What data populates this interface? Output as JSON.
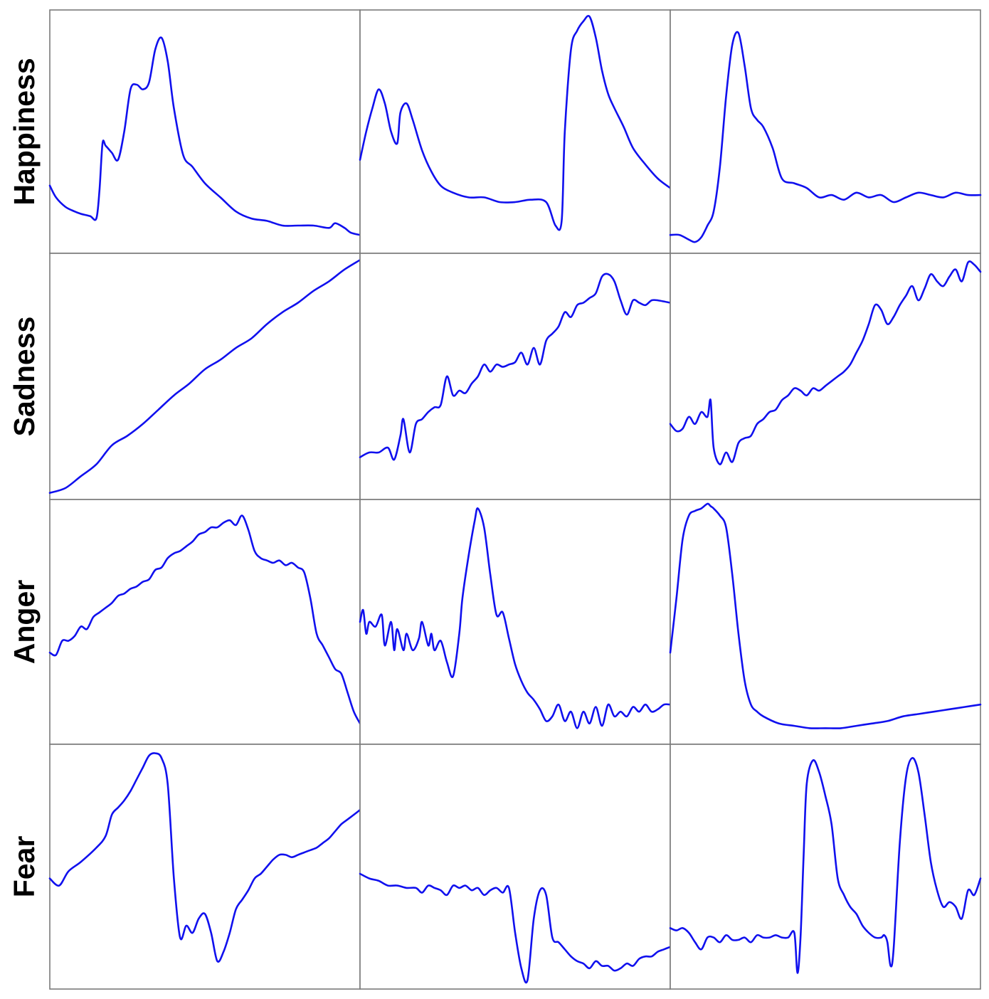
{
  "colors": {
    "line": "#1010ee",
    "frame": "#7a7a7a",
    "background": "#ffffff"
  },
  "rows": [
    {
      "label": "Happiness"
    },
    {
      "label": "Sadness"
    },
    {
      "label": "Anger"
    },
    {
      "label": "Fear"
    }
  ],
  "chart_data": {
    "type": "line",
    "layout": "grid",
    "grid": false,
    "axes_visible": false,
    "ylim": [
      0,
      1
    ],
    "panels": [
      [
        {
          "x": [
            0,
            0.02,
            0.05,
            0.08,
            0.1,
            0.13,
            0.15,
            0.16,
            0.17,
            0.18,
            0.2,
            0.22,
            0.24,
            0.26,
            0.28,
            0.3,
            0.32,
            0.34,
            0.36,
            0.38,
            0.4,
            0.43,
            0.46,
            0.5,
            0.55,
            0.6,
            0.65,
            0.7,
            0.75,
            0.8,
            0.85,
            0.9,
            0.92,
            0.95,
            0.97,
            1.0
          ],
          "y": [
            0.27,
            0.22,
            0.18,
            0.16,
            0.15,
            0.14,
            0.13,
            0.25,
            0.45,
            0.44,
            0.41,
            0.38,
            0.5,
            0.68,
            0.7,
            0.68,
            0.71,
            0.85,
            0.9,
            0.8,
            0.6,
            0.4,
            0.35,
            0.28,
            0.22,
            0.16,
            0.13,
            0.12,
            0.1,
            0.1,
            0.1,
            0.09,
            0.11,
            0.09,
            0.07,
            0.06
          ]
        },
        {
          "x": [
            0,
            0.02,
            0.04,
            0.06,
            0.08,
            0.1,
            0.12,
            0.13,
            0.15,
            0.17,
            0.2,
            0.23,
            0.26,
            0.3,
            0.35,
            0.4,
            0.45,
            0.5,
            0.55,
            0.6,
            0.63,
            0.65,
            0.66,
            0.68,
            0.7,
            0.72,
            0.74,
            0.76,
            0.78,
            0.8,
            0.82,
            0.85,
            0.88,
            0.92,
            0.96,
            1.0
          ],
          "y": [
            0.38,
            0.5,
            0.6,
            0.68,
            0.62,
            0.5,
            0.45,
            0.58,
            0.62,
            0.55,
            0.42,
            0.33,
            0.27,
            0.24,
            0.22,
            0.22,
            0.2,
            0.2,
            0.21,
            0.2,
            0.1,
            0.12,
            0.5,
            0.85,
            0.93,
            0.97,
            0.99,
            0.9,
            0.76,
            0.66,
            0.6,
            0.52,
            0.43,
            0.36,
            0.3,
            0.26
          ]
        },
        {
          "x": [
            0,
            0.03,
            0.06,
            0.08,
            0.1,
            0.12,
            0.14,
            0.16,
            0.18,
            0.2,
            0.22,
            0.24,
            0.26,
            0.28,
            0.3,
            0.33,
            0.36,
            0.4,
            0.44,
            0.48,
            0.52,
            0.56,
            0.6,
            0.64,
            0.68,
            0.72,
            0.76,
            0.8,
            0.84,
            0.88,
            0.92,
            0.96,
            1.0
          ],
          "y": [
            0.06,
            0.06,
            0.04,
            0.03,
            0.05,
            0.1,
            0.16,
            0.35,
            0.65,
            0.87,
            0.92,
            0.78,
            0.6,
            0.55,
            0.52,
            0.43,
            0.3,
            0.28,
            0.26,
            0.22,
            0.23,
            0.21,
            0.24,
            0.22,
            0.23,
            0.2,
            0.22,
            0.24,
            0.23,
            0.22,
            0.24,
            0.23,
            0.23
          ]
        }
      ],
      [
        {
          "x": [
            0,
            0.05,
            0.1,
            0.15,
            0.2,
            0.25,
            0.3,
            0.35,
            0.4,
            0.45,
            0.5,
            0.55,
            0.6,
            0.65,
            0.7,
            0.75,
            0.8,
            0.85,
            0.9,
            0.95,
            1.0
          ],
          "y": [
            0.01,
            0.03,
            0.08,
            0.13,
            0.21,
            0.25,
            0.3,
            0.36,
            0.42,
            0.47,
            0.53,
            0.57,
            0.62,
            0.66,
            0.72,
            0.77,
            0.81,
            0.86,
            0.9,
            0.95,
            0.99
          ]
        },
        {
          "x": [
            0,
            0.03,
            0.06,
            0.09,
            0.11,
            0.13,
            0.14,
            0.16,
            0.18,
            0.2,
            0.22,
            0.24,
            0.26,
            0.28,
            0.3,
            0.32,
            0.34,
            0.36,
            0.38,
            0.4,
            0.42,
            0.44,
            0.46,
            0.48,
            0.5,
            0.52,
            0.54,
            0.56,
            0.58,
            0.6,
            0.62,
            0.64,
            0.66,
            0.68,
            0.7,
            0.72,
            0.74,
            0.76,
            0.78,
            0.8,
            0.82,
            0.84,
            0.86,
            0.88,
            0.9,
            0.92,
            0.94,
            0.96,
            1.0
          ],
          "y": [
            0.16,
            0.18,
            0.18,
            0.2,
            0.15,
            0.25,
            0.32,
            0.18,
            0.3,
            0.32,
            0.35,
            0.37,
            0.38,
            0.5,
            0.42,
            0.44,
            0.43,
            0.47,
            0.5,
            0.55,
            0.52,
            0.55,
            0.54,
            0.55,
            0.56,
            0.6,
            0.55,
            0.62,
            0.55,
            0.65,
            0.68,
            0.71,
            0.77,
            0.75,
            0.8,
            0.81,
            0.83,
            0.85,
            0.92,
            0.93,
            0.9,
            0.82,
            0.76,
            0.82,
            0.81,
            0.8,
            0.82,
            0.82,
            0.81
          ]
        },
        {
          "x": [
            0,
            0.02,
            0.04,
            0.06,
            0.08,
            0.1,
            0.12,
            0.13,
            0.14,
            0.16,
            0.18,
            0.2,
            0.22,
            0.24,
            0.26,
            0.28,
            0.3,
            0.32,
            0.34,
            0.36,
            0.38,
            0.4,
            0.42,
            0.44,
            0.46,
            0.48,
            0.5,
            0.52,
            0.54,
            0.56,
            0.58,
            0.6,
            0.62,
            0.64,
            0.66,
            0.68,
            0.7,
            0.72,
            0.74,
            0.76,
            0.78,
            0.8,
            0.82,
            0.84,
            0.86,
            0.88,
            0.9,
            0.92,
            0.94,
            0.96,
            0.98,
            1.0
          ],
          "y": [
            0.3,
            0.27,
            0.28,
            0.33,
            0.3,
            0.35,
            0.33,
            0.4,
            0.2,
            0.13,
            0.18,
            0.14,
            0.22,
            0.24,
            0.25,
            0.3,
            0.32,
            0.35,
            0.36,
            0.4,
            0.42,
            0.45,
            0.44,
            0.42,
            0.45,
            0.44,
            0.46,
            0.48,
            0.5,
            0.52,
            0.55,
            0.6,
            0.65,
            0.72,
            0.8,
            0.78,
            0.72,
            0.75,
            0.8,
            0.84,
            0.88,
            0.82,
            0.87,
            0.93,
            0.9,
            0.88,
            0.92,
            0.95,
            0.9,
            0.98,
            0.97,
            0.94
          ]
        }
      ],
      [
        {
          "x": [
            0,
            0.02,
            0.04,
            0.06,
            0.08,
            0.1,
            0.12,
            0.14,
            0.16,
            0.18,
            0.2,
            0.22,
            0.24,
            0.26,
            0.28,
            0.3,
            0.32,
            0.34,
            0.36,
            0.38,
            0.4,
            0.42,
            0.44,
            0.46,
            0.48,
            0.5,
            0.52,
            0.54,
            0.56,
            0.58,
            0.6,
            0.62,
            0.64,
            0.66,
            0.68,
            0.7,
            0.72,
            0.74,
            0.76,
            0.78,
            0.8,
            0.82,
            0.84,
            0.86,
            0.88,
            0.9,
            0.92,
            0.94,
            0.96,
            0.98,
            1.0
          ],
          "y": [
            0.37,
            0.36,
            0.42,
            0.42,
            0.44,
            0.48,
            0.47,
            0.52,
            0.54,
            0.56,
            0.58,
            0.61,
            0.62,
            0.64,
            0.65,
            0.67,
            0.68,
            0.72,
            0.73,
            0.77,
            0.79,
            0.8,
            0.82,
            0.84,
            0.87,
            0.88,
            0.9,
            0.9,
            0.92,
            0.93,
            0.91,
            0.95,
            0.89,
            0.8,
            0.77,
            0.76,
            0.75,
            0.76,
            0.74,
            0.75,
            0.73,
            0.71,
            0.6,
            0.45,
            0.4,
            0.35,
            0.3,
            0.28,
            0.2,
            0.12,
            0.07
          ]
        },
        {
          "x": [
            0,
            0.01,
            0.02,
            0.03,
            0.05,
            0.07,
            0.08,
            0.1,
            0.11,
            0.12,
            0.14,
            0.15,
            0.17,
            0.19,
            0.2,
            0.22,
            0.23,
            0.24,
            0.26,
            0.28,
            0.3,
            0.32,
            0.33,
            0.35,
            0.37,
            0.38,
            0.4,
            0.42,
            0.44,
            0.46,
            0.48,
            0.5,
            0.52,
            0.54,
            0.56,
            0.58,
            0.6,
            0.62,
            0.64,
            0.66,
            0.68,
            0.7,
            0.72,
            0.74,
            0.76,
            0.78,
            0.8,
            0.82,
            0.84,
            0.86,
            0.88,
            0.9,
            0.92,
            0.94,
            0.96,
            0.98,
            1.0
          ],
          "y": [
            0.5,
            0.55,
            0.45,
            0.5,
            0.48,
            0.53,
            0.4,
            0.5,
            0.38,
            0.47,
            0.38,
            0.45,
            0.38,
            0.43,
            0.5,
            0.4,
            0.45,
            0.38,
            0.42,
            0.33,
            0.27,
            0.45,
            0.6,
            0.78,
            0.93,
            0.98,
            0.9,
            0.7,
            0.53,
            0.54,
            0.43,
            0.32,
            0.25,
            0.2,
            0.17,
            0.13,
            0.08,
            0.1,
            0.15,
            0.08,
            0.12,
            0.05,
            0.12,
            0.07,
            0.14,
            0.06,
            0.15,
            0.1,
            0.12,
            0.1,
            0.14,
            0.12,
            0.15,
            0.12,
            0.13,
            0.15,
            0.15
          ]
        },
        {
          "x": [
            0,
            0.02,
            0.04,
            0.06,
            0.08,
            0.1,
            0.12,
            0.13,
            0.14,
            0.16,
            0.18,
            0.2,
            0.22,
            0.24,
            0.26,
            0.28,
            0.3,
            0.35,
            0.4,
            0.45,
            0.5,
            0.55,
            0.6,
            0.65,
            0.7,
            0.75,
            0.8,
            0.85,
            0.9,
            0.95,
            1.0
          ],
          "y": [
            0.37,
            0.6,
            0.85,
            0.95,
            0.97,
            0.98,
            1.0,
            0.99,
            0.98,
            0.95,
            0.9,
            0.7,
            0.45,
            0.25,
            0.15,
            0.12,
            0.1,
            0.07,
            0.06,
            0.05,
            0.05,
            0.05,
            0.06,
            0.07,
            0.08,
            0.1,
            0.11,
            0.12,
            0.13,
            0.14,
            0.15
          ]
        }
      ],
      [
        {
          "x": [
            0,
            0.03,
            0.06,
            0.1,
            0.15,
            0.18,
            0.2,
            0.22,
            0.24,
            0.26,
            0.28,
            0.3,
            0.32,
            0.34,
            0.36,
            0.38,
            0.4,
            0.42,
            0.44,
            0.46,
            0.48,
            0.5,
            0.52,
            0.54,
            0.56,
            0.58,
            0.6,
            0.62,
            0.64,
            0.66,
            0.68,
            0.7,
            0.72,
            0.74,
            0.76,
            0.78,
            0.8,
            0.82,
            0.84,
            0.86,
            0.88,
            0.9,
            0.92,
            0.94,
            0.96,
            0.98,
            1.0
          ],
          "y": [
            0.45,
            0.42,
            0.48,
            0.52,
            0.58,
            0.63,
            0.72,
            0.75,
            0.78,
            0.82,
            0.87,
            0.92,
            0.97,
            0.98,
            0.96,
            0.85,
            0.45,
            0.2,
            0.25,
            0.22,
            0.28,
            0.3,
            0.22,
            0.1,
            0.14,
            0.22,
            0.32,
            0.36,
            0.4,
            0.45,
            0.47,
            0.5,
            0.53,
            0.55,
            0.55,
            0.54,
            0.55,
            0.56,
            0.57,
            0.58,
            0.6,
            0.62,
            0.65,
            0.68,
            0.7,
            0.72,
            0.74
          ]
        },
        {
          "x": [
            0,
            0.03,
            0.06,
            0.09,
            0.12,
            0.15,
            0.18,
            0.2,
            0.22,
            0.24,
            0.26,
            0.28,
            0.3,
            0.32,
            0.34,
            0.36,
            0.38,
            0.4,
            0.42,
            0.44,
            0.46,
            0.48,
            0.5,
            0.52,
            0.54,
            0.56,
            0.58,
            0.6,
            0.62,
            0.64,
            0.66,
            0.68,
            0.7,
            0.72,
            0.74,
            0.76,
            0.78,
            0.8,
            0.82,
            0.84,
            0.86,
            0.88,
            0.9,
            0.92,
            0.94,
            0.96,
            0.98,
            1.0
          ],
          "y": [
            0.47,
            0.45,
            0.44,
            0.42,
            0.42,
            0.41,
            0.41,
            0.39,
            0.42,
            0.41,
            0.4,
            0.38,
            0.42,
            0.41,
            0.42,
            0.4,
            0.41,
            0.38,
            0.4,
            0.41,
            0.39,
            0.41,
            0.22,
            0.07,
            0.02,
            0.28,
            0.4,
            0.38,
            0.2,
            0.18,
            0.15,
            0.12,
            0.1,
            0.09,
            0.07,
            0.1,
            0.08,
            0.08,
            0.06,
            0.07,
            0.09,
            0.08,
            0.11,
            0.12,
            0.12,
            0.14,
            0.15,
            0.16
          ]
        },
        {
          "x": [
            0,
            0.02,
            0.04,
            0.06,
            0.08,
            0.1,
            0.12,
            0.14,
            0.16,
            0.18,
            0.2,
            0.22,
            0.24,
            0.26,
            0.28,
            0.3,
            0.32,
            0.34,
            0.36,
            0.38,
            0.4,
            0.41,
            0.42,
            0.43,
            0.44,
            0.46,
            0.48,
            0.5,
            0.52,
            0.54,
            0.56,
            0.58,
            0.6,
            0.62,
            0.64,
            0.66,
            0.68,
            0.69,
            0.7,
            0.71,
            0.72,
            0.74,
            0.76,
            0.78,
            0.8,
            0.82,
            0.84,
            0.86,
            0.88,
            0.9,
            0.92,
            0.94,
            0.96,
            0.98,
            1.0
          ],
          "y": [
            0.24,
            0.23,
            0.24,
            0.22,
            0.18,
            0.15,
            0.2,
            0.2,
            0.18,
            0.21,
            0.19,
            0.19,
            0.2,
            0.18,
            0.21,
            0.2,
            0.2,
            0.21,
            0.2,
            0.2,
            0.22,
            0.05,
            0.2,
            0.55,
            0.85,
            0.95,
            0.9,
            0.8,
            0.68,
            0.45,
            0.38,
            0.33,
            0.3,
            0.25,
            0.22,
            0.2,
            0.2,
            0.21,
            0.18,
            0.08,
            0.15,
            0.6,
            0.88,
            0.96,
            0.9,
            0.72,
            0.52,
            0.4,
            0.33,
            0.35,
            0.33,
            0.28,
            0.4,
            0.38,
            0.45
          ]
        }
      ]
    ]
  }
}
